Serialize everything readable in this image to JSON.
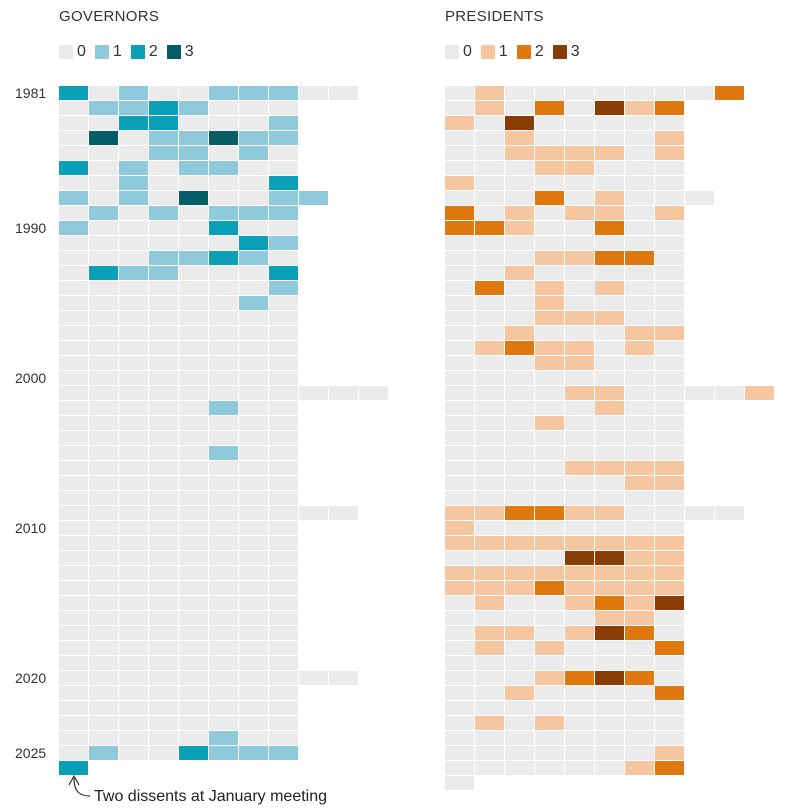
{
  "chart_data": [
    {
      "type": "heatmap",
      "title": "GOVERNORS",
      "legend": [
        {
          "label": "0",
          "color": "#ebebeb"
        },
        {
          "label": "1",
          "color": "#8ecadb"
        },
        {
          "label": "2",
          "color": "#0aa1b8"
        },
        {
          "label": "3",
          "color": "#055e67"
        }
      ],
      "year_labels": [
        "1981",
        "1990",
        "2000",
        "2010",
        "2020",
        "2025"
      ],
      "rows": [
        [
          2,
          0,
          1,
          0,
          0,
          1,
          1,
          1,
          0,
          0
        ],
        [
          0,
          1,
          1,
          2,
          1,
          0,
          0,
          0
        ],
        [
          0,
          0,
          2,
          2,
          0,
          0,
          0,
          1
        ],
        [
          0,
          3,
          0,
          1,
          1,
          3,
          1,
          1
        ],
        [
          0,
          0,
          0,
          1,
          1,
          0,
          1,
          0
        ],
        [
          2,
          0,
          1,
          0,
          1,
          1,
          0,
          0
        ],
        [
          0,
          0,
          1,
          0,
          0,
          0,
          0,
          2
        ],
        [
          1,
          0,
          1,
          0,
          3,
          0,
          0,
          1,
          1
        ],
        [
          0,
          1,
          0,
          1,
          0,
          1,
          1,
          1
        ],
        [
          1,
          0,
          0,
          0,
          0,
          2,
          0,
          0
        ],
        [
          0,
          0,
          0,
          0,
          0,
          0,
          2,
          1
        ],
        [
          0,
          0,
          0,
          1,
          1,
          2,
          1,
          0
        ],
        [
          0,
          2,
          1,
          1,
          0,
          0,
          0,
          2
        ],
        [
          0,
          0,
          0,
          0,
          0,
          0,
          0,
          1
        ],
        [
          0,
          0,
          0,
          0,
          0,
          0,
          1,
          0
        ],
        [
          0,
          0,
          0,
          0,
          0,
          0,
          0,
          0
        ],
        [
          0,
          0,
          0,
          0,
          0,
          0,
          0,
          0
        ],
        [
          0,
          0,
          0,
          0,
          0,
          0,
          0,
          0
        ],
        [
          0,
          0,
          0,
          0,
          0,
          0,
          0,
          0
        ],
        [
          0,
          0,
          0,
          0,
          0,
          0,
          0,
          0
        ],
        [
          0,
          0,
          0,
          0,
          0,
          0,
          0,
          0,
          0,
          0,
          0
        ],
        [
          0,
          0,
          0,
          0,
          0,
          1,
          0,
          0
        ],
        [
          0,
          0,
          0,
          0,
          0,
          0,
          0,
          0
        ],
        [
          0,
          0,
          0,
          0,
          0,
          0,
          0,
          0
        ],
        [
          0,
          0,
          0,
          0,
          0,
          1,
          0,
          0
        ],
        [
          0,
          0,
          0,
          0,
          0,
          0,
          0,
          0
        ],
        [
          0,
          0,
          0,
          0,
          0,
          0,
          0,
          0
        ],
        [
          0,
          0,
          0,
          0,
          0,
          0,
          0,
          0
        ],
        [
          0,
          0,
          0,
          0,
          0,
          0,
          0,
          0,
          0,
          0
        ],
        [
          0,
          0,
          0,
          0,
          0,
          0,
          0,
          0
        ],
        [
          0,
          0,
          0,
          0,
          0,
          0,
          0,
          0
        ],
        [
          0,
          0,
          0,
          0,
          0,
          0,
          0,
          0
        ],
        [
          0,
          0,
          0,
          0,
          0,
          0,
          0,
          0
        ],
        [
          0,
          0,
          0,
          0,
          0,
          0,
          0,
          0
        ],
        [
          0,
          0,
          0,
          0,
          0,
          0,
          0,
          0
        ],
        [
          0,
          0,
          0,
          0,
          0,
          0,
          0,
          0
        ],
        [
          0,
          0,
          0,
          0,
          0,
          0,
          0,
          0
        ],
        [
          0,
          0,
          0,
          0,
          0,
          0,
          0,
          0
        ],
        [
          0,
          0,
          0,
          0,
          0,
          0,
          0,
          0
        ],
        [
          0,
          0,
          0,
          0,
          0,
          0,
          0,
          0,
          0,
          0
        ],
        [
          0,
          0,
          0,
          0,
          0,
          0,
          0,
          0
        ],
        [
          0,
          0,
          0,
          0,
          0,
          0,
          0,
          0
        ],
        [
          0,
          0,
          0,
          0,
          0,
          0,
          0,
          0
        ],
        [
          0,
          0,
          0,
          0,
          0,
          1,
          0,
          0
        ],
        [
          0,
          1,
          0,
          0,
          2,
          1,
          1,
          1
        ],
        [
          2
        ]
      ],
      "annotation": "Two dissents at January meeting"
    },
    {
      "type": "heatmap",
      "title": "PRESIDENTS",
      "legend": [
        {
          "label": "0",
          "color": "#ebebeb"
        },
        {
          "label": "1",
          "color": "#f5c6a0"
        },
        {
          "label": "2",
          "color": "#e07810"
        },
        {
          "label": "3",
          "color": "#8a3c05"
        }
      ],
      "rows": [
        [
          0,
          1,
          0,
          0,
          0,
          0,
          0,
          0,
          0,
          2
        ],
        [
          0,
          1,
          0,
          2,
          0,
          3,
          1,
          2
        ],
        [
          1,
          0,
          3,
          0,
          0,
          0,
          0,
          0
        ],
        [
          0,
          0,
          1,
          0,
          0,
          0,
          0,
          1
        ],
        [
          0,
          0,
          1,
          1,
          1,
          1,
          0,
          1
        ],
        [
          0,
          0,
          0,
          1,
          1,
          0,
          0,
          0
        ],
        [
          1,
          0,
          0,
          0,
          0,
          0,
          0,
          0
        ],
        [
          0,
          0,
          0,
          2,
          0,
          1,
          0,
          0,
          0
        ],
        [
          2,
          0,
          1,
          0,
          1,
          1,
          0,
          1
        ],
        [
          2,
          2,
          1,
          0,
          0,
          2,
          0,
          0
        ],
        [
          0,
          0,
          0,
          0,
          0,
          0,
          0,
          0
        ],
        [
          0,
          0,
          0,
          1,
          1,
          2,
          2,
          0
        ],
        [
          0,
          0,
          1,
          0,
          0,
          0,
          0,
          0
        ],
        [
          0,
          2,
          0,
          1,
          0,
          1,
          0,
          0
        ],
        [
          0,
          0,
          0,
          1,
          0,
          0,
          0,
          0
        ],
        [
          0,
          0,
          0,
          1,
          1,
          1,
          0,
          0
        ],
        [
          0,
          0,
          1,
          0,
          0,
          0,
          1,
          1
        ],
        [
          0,
          1,
          2,
          1,
          1,
          0,
          1,
          0
        ],
        [
          0,
          0,
          0,
          1,
          1,
          0,
          0,
          0
        ],
        [
          0,
          0,
          0,
          0,
          0,
          0,
          0,
          0
        ],
        [
          0,
          0,
          0,
          0,
          1,
          1,
          0,
          0,
          0,
          0,
          1
        ],
        [
          0,
          0,
          0,
          0,
          0,
          1,
          0,
          0
        ],
        [
          0,
          0,
          0,
          1,
          0,
          0,
          0,
          0
        ],
        [
          0,
          0,
          0,
          0,
          0,
          0,
          0,
          0
        ],
        [
          0,
          0,
          0,
          0,
          0,
          0,
          0,
          0
        ],
        [
          0,
          0,
          0,
          0,
          1,
          1,
          1,
          1
        ],
        [
          0,
          0,
          0,
          0,
          0,
          0,
          1,
          1
        ],
        [
          0,
          0,
          0,
          0,
          0,
          0,
          0,
          0
        ],
        [
          1,
          1,
          2,
          2,
          1,
          1,
          0,
          0,
          0,
          0
        ],
        [
          1,
          0,
          0,
          0,
          0,
          0,
          0,
          0
        ],
        [
          1,
          1,
          1,
          1,
          1,
          1,
          1,
          1
        ],
        [
          0,
          0,
          0,
          0,
          3,
          3,
          1,
          1
        ],
        [
          1,
          1,
          1,
          1,
          1,
          1,
          1,
          1
        ],
        [
          1,
          1,
          1,
          2,
          1,
          1,
          1,
          1
        ],
        [
          0,
          1,
          0,
          0,
          1,
          2,
          1,
          3
        ],
        [
          0,
          0,
          0,
          0,
          0,
          1,
          1,
          0
        ],
        [
          0,
          1,
          1,
          0,
          1,
          3,
          2,
          0
        ],
        [
          0,
          1,
          0,
          1,
          0,
          0,
          0,
          2
        ],
        [
          0,
          0,
          0,
          0,
          0,
          0,
          0,
          0
        ],
        [
          0,
          0,
          0,
          1,
          2,
          3,
          2,
          0
        ],
        [
          0,
          0,
          1,
          0,
          0,
          0,
          0,
          2
        ],
        [
          0,
          0,
          0,
          0,
          0,
          0,
          0,
          0
        ],
        [
          0,
          1,
          0,
          1,
          0,
          0,
          0,
          0
        ],
        [
          0,
          0,
          0,
          0,
          0,
          0,
          0,
          0
        ],
        [
          0,
          0,
          0,
          0,
          0,
          0,
          0,
          1
        ],
        [
          0,
          0,
          0,
          0,
          0,
          0,
          1,
          2
        ],
        [
          0
        ]
      ]
    }
  ]
}
